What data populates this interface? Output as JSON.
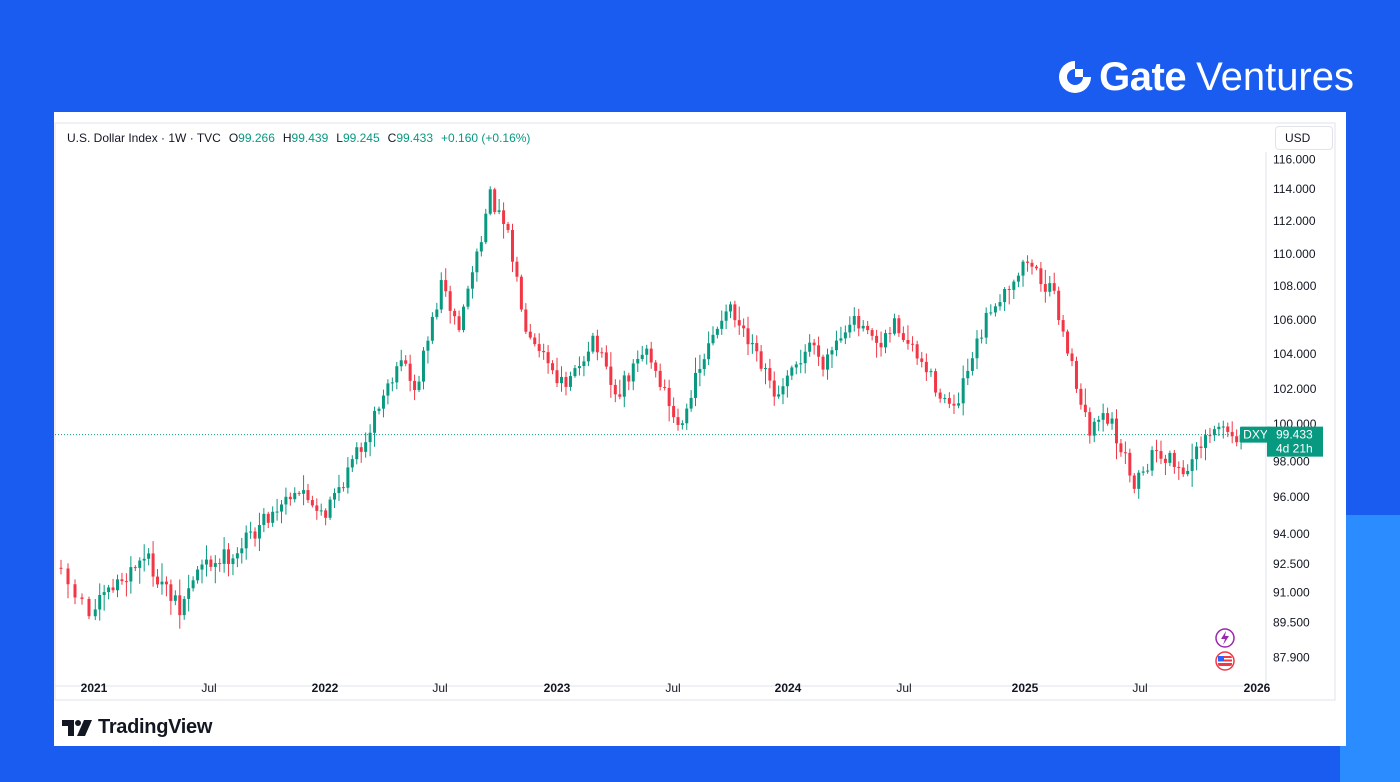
{
  "brand": {
    "name": "Gate",
    "sub": "Ventures"
  },
  "legend": {
    "symbol": "U.S. Dollar Index · 1W · TVC",
    "o_label": "O",
    "o_value": "99.266",
    "h_label": "H",
    "h_value": "99.439",
    "l_label": "L",
    "l_value": "99.245",
    "c_label": "C",
    "c_value": "99.433",
    "change": "+0.160 (+0.16%)"
  },
  "currency": "USD",
  "price_badge": {
    "ticker": "DXY",
    "price": "99.433",
    "countdown": "4d 21h"
  },
  "footer_logo": "TradingView",
  "chart_data": {
    "type": "candlestick",
    "title": "U.S. Dollar Index · 1W · TVC",
    "interval": "1W",
    "y_ticks": [
      87.9,
      89.5,
      91.0,
      92.5,
      94.0,
      96.0,
      98.0,
      100.0,
      102.0,
      104.0,
      106.0,
      108.0,
      110.0,
      112.0,
      114.0,
      116.0
    ],
    "y_tick_labels": [
      "87.900",
      "89.500",
      "91.000",
      "92.500",
      "94.000",
      "96.000",
      "98.000",
      "100.000",
      "102.000",
      "104.000",
      "106.000",
      "108.000",
      "110.000",
      "112.000",
      "114.000",
      "116.000"
    ],
    "x_ticks": [
      {
        "label": "2021",
        "date": "2021-01-01"
      },
      {
        "label": "Jul",
        "date": "2021-07-01"
      },
      {
        "label": "2022",
        "date": "2022-01-01"
      },
      {
        "label": "Jul",
        "date": "2022-07-01"
      },
      {
        "label": "2023",
        "date": "2023-01-01"
      },
      {
        "label": "Jul",
        "date": "2023-07-01"
      },
      {
        "label": "2024",
        "date": "2024-01-01"
      },
      {
        "label": "Jul",
        "date": "2024-07-01"
      },
      {
        "label": "2025",
        "date": "2025-01-01"
      },
      {
        "label": "Jul",
        "date": "2025-07-01"
      },
      {
        "label": "2026",
        "date": "2026-01-01"
      }
    ],
    "x_range": [
      "2020-11-22",
      "2025-12-25"
    ],
    "last_price": 99.433,
    "colors": {
      "up": "#089981",
      "down": "#f23645",
      "badge": "#089981"
    },
    "anchors": [
      {
        "date": "2020-11-29",
        "value": 92.3
      },
      {
        "date": "2021-01-03",
        "value": 89.9
      },
      {
        "date": "2021-03-28",
        "value": 93.0
      },
      {
        "date": "2021-05-23",
        "value": 90.0
      },
      {
        "date": "2021-06-20",
        "value": 92.2
      },
      {
        "date": "2021-08-22",
        "value": 93.2
      },
      {
        "date": "2021-11-21",
        "value": 96.5
      },
      {
        "date": "2022-01-09",
        "value": 95.2
      },
      {
        "date": "2022-03-06",
        "value": 98.8
      },
      {
        "date": "2022-05-08",
        "value": 104.0
      },
      {
        "date": "2022-05-29",
        "value": 101.7
      },
      {
        "date": "2022-07-10",
        "value": 108.0
      },
      {
        "date": "2022-08-07",
        "value": 105.5
      },
      {
        "date": "2022-09-25",
        "value": 113.5
      },
      {
        "date": "2022-10-23",
        "value": 111.0
      },
      {
        "date": "2022-11-20",
        "value": 105.8
      },
      {
        "date": "2023-01-22",
        "value": 101.9
      },
      {
        "date": "2023-03-05",
        "value": 105.0
      },
      {
        "date": "2023-04-09",
        "value": 101.5
      },
      {
        "date": "2023-05-28",
        "value": 104.3
      },
      {
        "date": "2023-07-16",
        "value": 99.9
      },
      {
        "date": "2023-10-01",
        "value": 106.9
      },
      {
        "date": "2023-12-24",
        "value": 101.4
      },
      {
        "date": "2024-02-11",
        "value": 104.7
      },
      {
        "date": "2024-03-03",
        "value": 103.6
      },
      {
        "date": "2024-04-14",
        "value": 106.1
      },
      {
        "date": "2024-06-02",
        "value": 104.2
      },
      {
        "date": "2024-06-23",
        "value": 105.8
      },
      {
        "date": "2024-09-22",
        "value": 100.6
      },
      {
        "date": "2024-11-17",
        "value": 106.7
      },
      {
        "date": "2025-01-12",
        "value": 109.6
      },
      {
        "date": "2025-02-23",
        "value": 107.3
      },
      {
        "date": "2025-04-20",
        "value": 99.4
      },
      {
        "date": "2025-05-11",
        "value": 101.0
      },
      {
        "date": "2025-06-29",
        "value": 96.9
      },
      {
        "date": "2025-08-03",
        "value": 98.7
      },
      {
        "date": "2025-09-14",
        "value": 97.5
      },
      {
        "date": "2025-11-09",
        "value": 99.8
      },
      {
        "date": "2025-12-07",
        "value": 99.433
      }
    ]
  }
}
